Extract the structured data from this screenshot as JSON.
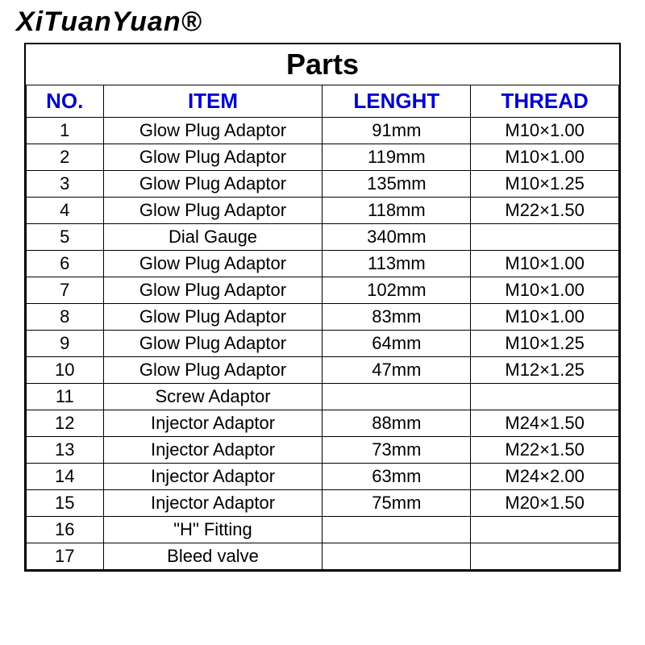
{
  "brand": "XiTuanYuan®",
  "table": {
    "title": "Parts",
    "columns": [
      "NO.",
      "ITEM",
      "LENGHT",
      "THREAD"
    ],
    "column_widths_pct": [
      13,
      37,
      25,
      25
    ],
    "header_color": "#0000cc",
    "header_fontsize": 26,
    "title_fontsize": 36,
    "body_fontsize": 22,
    "border_color": "#000000",
    "background_color": "#ffffff",
    "rows": [
      [
        "1",
        "Glow Plug Adaptor",
        "91mm",
        "M10×1.00"
      ],
      [
        "2",
        "Glow Plug Adaptor",
        "119mm",
        "M10×1.00"
      ],
      [
        "3",
        "Glow Plug Adaptor",
        "135mm",
        "M10×1.25"
      ],
      [
        "4",
        "Glow Plug Adaptor",
        "118mm",
        "M22×1.50"
      ],
      [
        "5",
        "Dial Gauge",
        "340mm",
        ""
      ],
      [
        "6",
        "Glow Plug Adaptor",
        "113mm",
        "M10×1.00"
      ],
      [
        "7",
        "Glow Plug Adaptor",
        "102mm",
        "M10×1.00"
      ],
      [
        "8",
        "Glow Plug Adaptor",
        "83mm",
        "M10×1.00"
      ],
      [
        "9",
        "Glow Plug Adaptor",
        "64mm",
        "M10×1.25"
      ],
      [
        "10",
        "Glow Plug Adaptor",
        "47mm",
        "M12×1.25"
      ],
      [
        "11",
        "Screw Adaptor",
        "",
        ""
      ],
      [
        "12",
        "Injector Adaptor",
        "88mm",
        "M24×1.50"
      ],
      [
        "13",
        "Injector Adaptor",
        "73mm",
        "M22×1.50"
      ],
      [
        "14",
        "Injector Adaptor",
        "63mm",
        "M24×2.00"
      ],
      [
        "15",
        "Injector Adaptor",
        "75mm",
        "M20×1.50"
      ],
      [
        "16",
        "\"H\" Fitting",
        "",
        ""
      ],
      [
        "17",
        "Bleed valve",
        "",
        ""
      ]
    ]
  }
}
